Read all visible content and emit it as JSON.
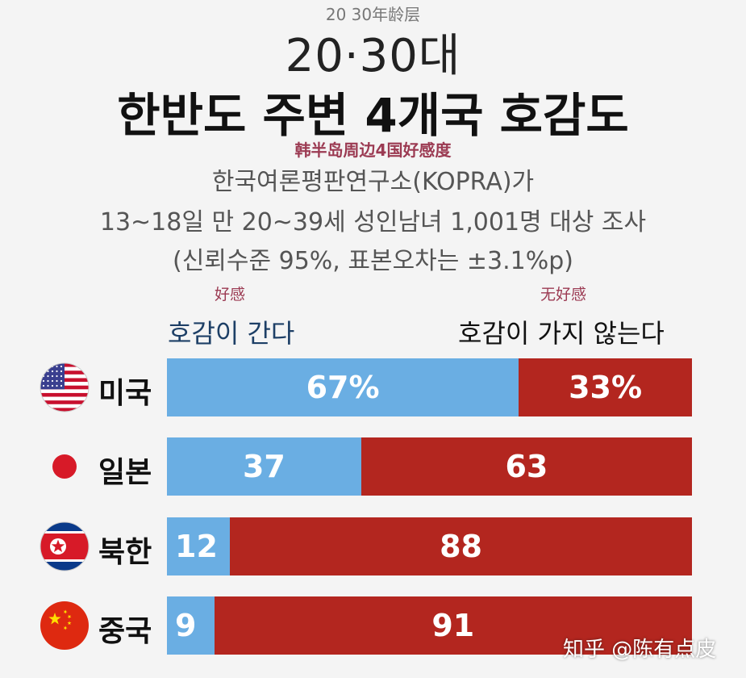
{
  "header": {
    "top_note": "20 30年龄层",
    "kicker": "20·30대",
    "title": "한반도 주변 4개국 호감도",
    "cn_subtitle": "韩半岛周边4国好感度",
    "source_lines": [
      "한국여론평판연구소(KOPRA)가",
      "13~18일 만 20~39세 성인남녀 1,001명 대상 조사",
      "(신뢰수준 95%, 표본오차는 ±3.1%p)"
    ]
  },
  "legend": {
    "positive_cn": "好感",
    "positive": "호감이 간다",
    "negative_cn": "无好感",
    "negative": "호감이 가지 않는다"
  },
  "colors": {
    "positive": "#6aaee3",
    "negative": "#b3261f"
  },
  "chart_data": {
    "type": "bar",
    "orientation": "horizontal-stacked-100",
    "categories": [
      "미국",
      "일본",
      "북한",
      "중국"
    ],
    "flag_icons": [
      "us-flag-icon",
      "japan-flag-icon",
      "north-korea-flag-icon",
      "china-flag-icon"
    ],
    "series": [
      {
        "name": "호감이 간다",
        "values": [
          67,
          37,
          12,
          9
        ],
        "labels": [
          "67%",
          "37",
          "12",
          "9"
        ]
      },
      {
        "name": "호감이 가지 않는다",
        "values": [
          33,
          63,
          88,
          91
        ],
        "labels": [
          "33%",
          "63",
          "88",
          "91"
        ]
      }
    ],
    "xlim": [
      0,
      100
    ]
  },
  "watermark": "知乎 @陈有点皮"
}
